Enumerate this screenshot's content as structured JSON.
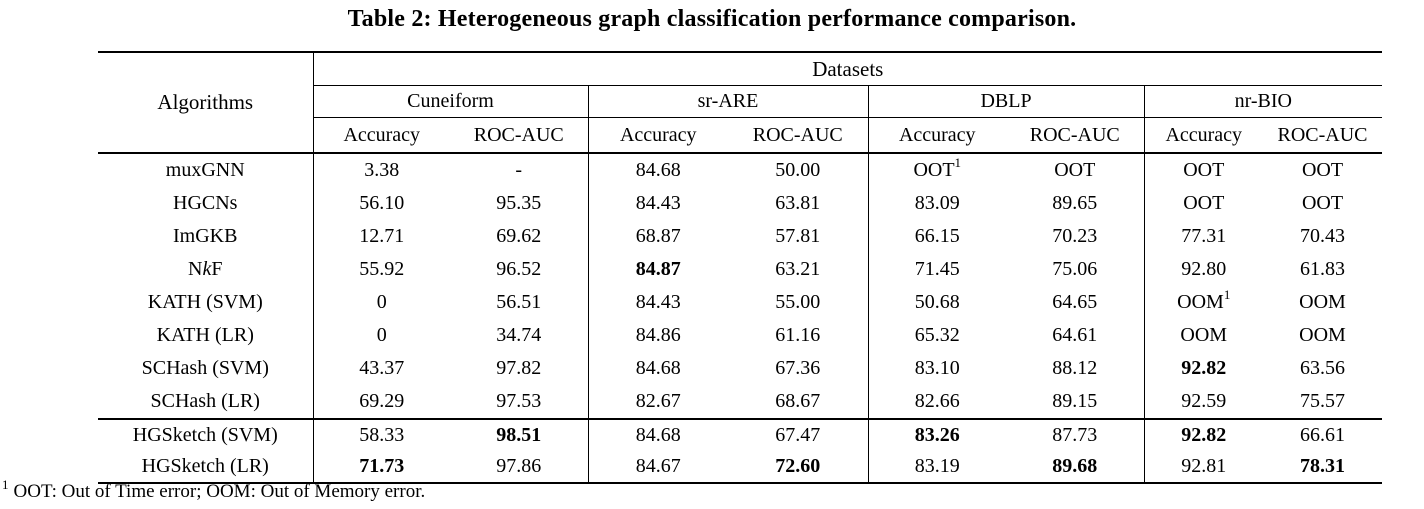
{
  "title": "Table 2: Heterogeneous graph classification performance comparison.",
  "table": {
    "algorithms_header": "Algorithms",
    "datasets_header": "Datasets",
    "groups": [
      "Cuneiform",
      "sr-ARE",
      "DBLP",
      "nr-BIO"
    ],
    "metrics": [
      "Accuracy",
      "ROC-AUC"
    ],
    "rows": [
      {
        "name": [
          {
            "t": "muxGNN"
          }
        ],
        "cells": [
          {
            "v": "3.38"
          },
          {
            "v": "-"
          },
          {
            "v": "84.68"
          },
          {
            "v": "50.00"
          },
          {
            "v": "OOT",
            "sup": "1"
          },
          {
            "v": "OOT"
          },
          {
            "v": "OOT"
          },
          {
            "v": "OOT"
          }
        ]
      },
      {
        "name": [
          {
            "t": "HGCNs"
          }
        ],
        "cells": [
          {
            "v": "56.10"
          },
          {
            "v": "95.35"
          },
          {
            "v": "84.43"
          },
          {
            "v": "63.81"
          },
          {
            "v": "83.09"
          },
          {
            "v": "89.65"
          },
          {
            "v": "OOT"
          },
          {
            "v": "OOT"
          }
        ]
      },
      {
        "name": [
          {
            "t": "ImGKB"
          }
        ],
        "cells": [
          {
            "v": "12.71"
          },
          {
            "v": "69.62"
          },
          {
            "v": "68.87"
          },
          {
            "v": "57.81"
          },
          {
            "v": "66.15"
          },
          {
            "v": "70.23"
          },
          {
            "v": "77.31"
          },
          {
            "v": "70.43"
          }
        ]
      },
      {
        "name": [
          {
            "t": "N"
          },
          {
            "t": "k",
            "i": true
          },
          {
            "t": "F"
          }
        ],
        "cells": [
          {
            "v": "55.92"
          },
          {
            "v": "96.52"
          },
          {
            "v": "84.87",
            "b": true
          },
          {
            "v": "63.21"
          },
          {
            "v": "71.45"
          },
          {
            "v": "75.06"
          },
          {
            "v": "92.80"
          },
          {
            "v": "61.83"
          }
        ]
      },
      {
        "name": [
          {
            "t": "KATH (SVM)"
          }
        ],
        "cells": [
          {
            "v": "0"
          },
          {
            "v": "56.51"
          },
          {
            "v": "84.43"
          },
          {
            "v": "55.00"
          },
          {
            "v": "50.68"
          },
          {
            "v": "64.65"
          },
          {
            "v": "OOM",
            "sup": "1"
          },
          {
            "v": "OOM"
          }
        ]
      },
      {
        "name": [
          {
            "t": "KATH (LR)"
          }
        ],
        "cells": [
          {
            "v": "0"
          },
          {
            "v": "34.74"
          },
          {
            "v": "84.86"
          },
          {
            "v": "61.16"
          },
          {
            "v": "65.32"
          },
          {
            "v": "64.61"
          },
          {
            "v": "OOM"
          },
          {
            "v": "OOM"
          }
        ]
      },
      {
        "name": [
          {
            "t": "SCHash (SVM)"
          }
        ],
        "cells": [
          {
            "v": "43.37"
          },
          {
            "v": "97.82"
          },
          {
            "v": "84.68"
          },
          {
            "v": "67.36"
          },
          {
            "v": "83.10"
          },
          {
            "v": "88.12"
          },
          {
            "v": "92.82",
            "b": true
          },
          {
            "v": "63.56"
          }
        ]
      },
      {
        "name": [
          {
            "t": "SCHash (LR)"
          }
        ],
        "cells": [
          {
            "v": "69.29"
          },
          {
            "v": "97.53"
          },
          {
            "v": "82.67"
          },
          {
            "v": "68.67"
          },
          {
            "v": "82.66"
          },
          {
            "v": "89.15"
          },
          {
            "v": "92.59"
          },
          {
            "v": "75.57"
          }
        ]
      },
      {
        "name": [
          {
            "t": "HGSketch (SVM)"
          }
        ],
        "section_start": true,
        "hg": true,
        "cells": [
          {
            "v": "58.33"
          },
          {
            "v": "98.51",
            "b": true
          },
          {
            "v": "84.68"
          },
          {
            "v": "67.47"
          },
          {
            "v": "83.26",
            "b": true
          },
          {
            "v": "87.73"
          },
          {
            "v": "92.82",
            "b": true
          },
          {
            "v": "66.61"
          }
        ]
      },
      {
        "name": [
          {
            "t": "HGSketch (LR)"
          }
        ],
        "hg": true,
        "cells": [
          {
            "v": "71.73",
            "b": true
          },
          {
            "v": "97.86"
          },
          {
            "v": "84.67"
          },
          {
            "v": "72.60",
            "b": true
          },
          {
            "v": "83.19"
          },
          {
            "v": "89.68",
            "b": true
          },
          {
            "v": "92.81"
          },
          {
            "v": "78.31",
            "b": true
          }
        ]
      }
    ]
  },
  "footnote": {
    "marker": "1",
    "text": "OOT: Out of Time error; OOM: Out of Memory error."
  }
}
